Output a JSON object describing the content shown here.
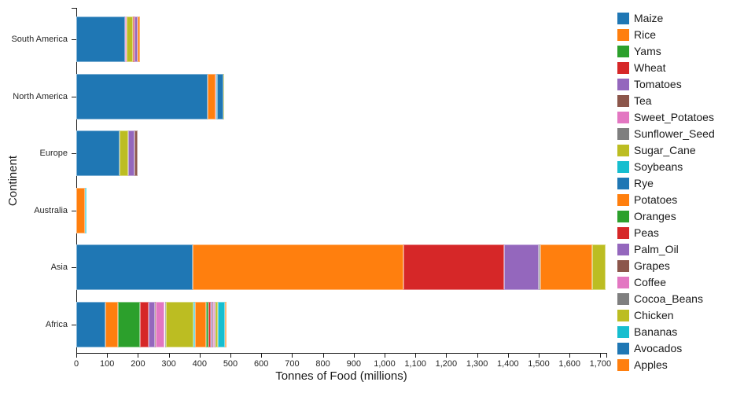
{
  "chart_data": {
    "type": "bar",
    "orientation": "horizontal",
    "stacked": true,
    "title": "",
    "xlabel": "Tonnes of Food (millions)",
    "ylabel": "Continent",
    "grid": false,
    "legend_position": "top-right",
    "categories": [
      "South America",
      "North America",
      "Europe",
      "Australia",
      "Asia",
      "Africa"
    ],
    "xlim": [
      0,
      1750
    ],
    "x_ticks": [
      0,
      100,
      200,
      300,
      400,
      500,
      600,
      700,
      800,
      900,
      1000,
      1100,
      1200,
      1300,
      1400,
      1500,
      1600,
      1700
    ],
    "x_tick_labels": [
      "0",
      "100",
      "200",
      "300",
      "400",
      "500",
      "600",
      "700",
      "800",
      "900",
      "1,000",
      "1,100",
      "1,200",
      "1,300",
      "1,400",
      "1,500",
      "1,600",
      "1,700"
    ],
    "palette_note": "category10 cycle",
    "series": [
      {
        "name": "Maize",
        "color": "#1f77b4",
        "values": [
          159,
          427,
          140,
          0,
          378,
          94
        ]
      },
      {
        "name": "Rice",
        "color": "#ff7f0e",
        "values": [
          0,
          24,
          0,
          28,
          684,
          40
        ]
      },
      {
        "name": "Yams",
        "color": "#2ca02c",
        "values": [
          0,
          0,
          0,
          0,
          0,
          72
        ]
      },
      {
        "name": "Wheat",
        "color": "#d62728",
        "values": [
          0,
          0,
          0,
          0,
          327,
          28
        ]
      },
      {
        "name": "Tomatoes",
        "color": "#9467bd",
        "values": [
          0,
          0,
          0,
          0,
          110,
          21
        ]
      },
      {
        "name": "Tea",
        "color": "#8c564b",
        "values": [
          0,
          0,
          0,
          0,
          0,
          2
        ]
      },
      {
        "name": "Sweet_Potatoes",
        "color": "#e377c2",
        "values": [
          5,
          3,
          0,
          0,
          0,
          30
        ]
      },
      {
        "name": "Sunflower_Seed",
        "color": "#7f7f7f",
        "values": [
          0,
          0,
          0,
          0,
          5,
          4
        ]
      },
      {
        "name": "Sugar_Cane",
        "color": "#bcbd22",
        "values": [
          20,
          0,
          29,
          0,
          0,
          89
        ]
      },
      {
        "name": "Soybeans",
        "color": "#17becf",
        "values": [
          0,
          2,
          0,
          6,
          0,
          5
        ]
      },
      {
        "name": "Rye",
        "color": "#1f77b4",
        "values": [
          0,
          21,
          0,
          0,
          0,
          0
        ]
      },
      {
        "name": "Potatoes",
        "color": "#ff7f0e",
        "values": [
          0,
          0,
          0,
          0,
          170,
          36
        ]
      },
      {
        "name": "Oranges",
        "color": "#2ca02c",
        "values": [
          0,
          0,
          0,
          0,
          0,
          8
        ]
      },
      {
        "name": "Peas",
        "color": "#d62728",
        "values": [
          5,
          0,
          0,
          0,
          0,
          7
        ]
      },
      {
        "name": "Palm_Oil",
        "color": "#9467bd",
        "values": [
          10,
          0,
          20,
          0,
          0,
          5
        ]
      },
      {
        "name": "Grapes",
        "color": "#8c564b",
        "values": [
          0,
          0,
          9,
          0,
          0,
          4
        ]
      },
      {
        "name": "Coffee",
        "color": "#e377c2",
        "values": [
          0,
          0,
          0,
          0,
          0,
          3
        ]
      },
      {
        "name": "Cocoa_Beans",
        "color": "#7f7f7f",
        "values": [
          0,
          0,
          0,
          0,
          0,
          3
        ]
      },
      {
        "name": "Chicken",
        "color": "#bcbd22",
        "values": [
          0,
          3,
          0,
          0,
          44,
          8
        ]
      },
      {
        "name": "Bananas",
        "color": "#17becf",
        "values": [
          0,
          0,
          0,
          0,
          0,
          23
        ]
      },
      {
        "name": "Avocados",
        "color": "#1f77b4",
        "values": [
          0,
          0,
          0,
          0,
          0,
          0
        ]
      },
      {
        "name": "Apples",
        "color": "#ff7f0e",
        "values": [
          7,
          0,
          0,
          0,
          0,
          5
        ]
      }
    ],
    "axis_color": "#1a1a1a",
    "text_color": "#262626"
  }
}
